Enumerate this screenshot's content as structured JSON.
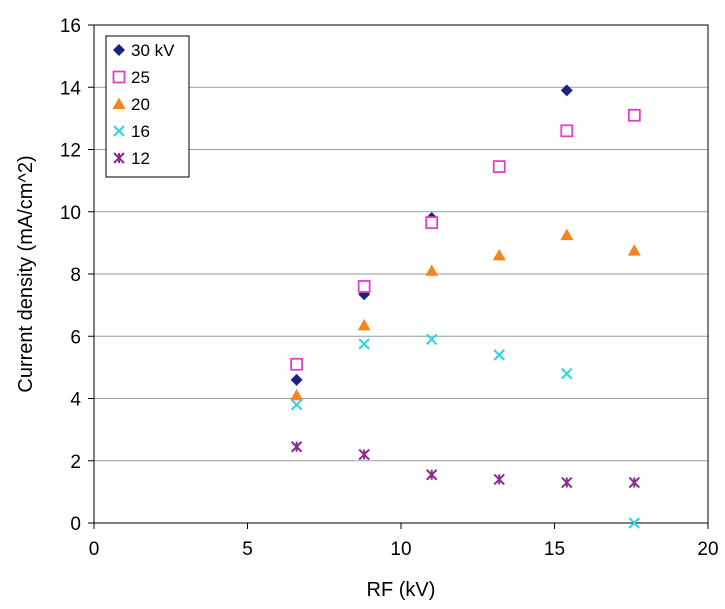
{
  "chart_data": {
    "type": "scatter",
    "title": "",
    "xlabel": "RF (kV)",
    "ylabel": "Current density (mA/cm^2)",
    "xlim": [
      0,
      20
    ],
    "ylim": [
      0,
      16
    ],
    "xticks": [
      0,
      5,
      10,
      15,
      20
    ],
    "yticks": [
      0,
      2,
      4,
      6,
      8,
      10,
      12,
      14,
      16
    ],
    "grid": "horizontal",
    "legend_position": "top-left",
    "series": [
      {
        "name": "30 kV",
        "marker": "diamond",
        "color": "#1a237e",
        "x": [
          6.6,
          8.8,
          11.0,
          13.2,
          15.4
        ],
        "y": [
          4.6,
          7.35,
          9.8,
          11.45,
          13.9
        ]
      },
      {
        "name": "25",
        "marker": "square-open",
        "color": "#e040c8",
        "x": [
          6.6,
          8.8,
          11.0,
          13.2,
          15.4,
          17.6
        ],
        "y": [
          5.1,
          7.6,
          9.65,
          11.45,
          12.6,
          13.1
        ]
      },
      {
        "name": "20",
        "marker": "triangle",
        "color": "#f5861f",
        "x": [
          6.6,
          8.8,
          11.0,
          13.2,
          15.4,
          17.6
        ],
        "y": [
          4.1,
          6.35,
          8.1,
          8.6,
          9.25,
          8.75
        ]
      },
      {
        "name": "16",
        "marker": "x",
        "color": "#33d6e0",
        "x": [
          6.6,
          8.8,
          11.0,
          13.2,
          15.4,
          17.6
        ],
        "y": [
          3.8,
          5.75,
          5.9,
          5.4,
          4.8,
          0.0
        ]
      },
      {
        "name": "12",
        "marker": "asterisk",
        "color": "#8e2a8e",
        "x": [
          6.6,
          8.8,
          11.0,
          13.2,
          15.4,
          17.6
        ],
        "y": [
          2.45,
          2.2,
          1.55,
          1.4,
          1.3,
          1.3
        ]
      }
    ]
  }
}
